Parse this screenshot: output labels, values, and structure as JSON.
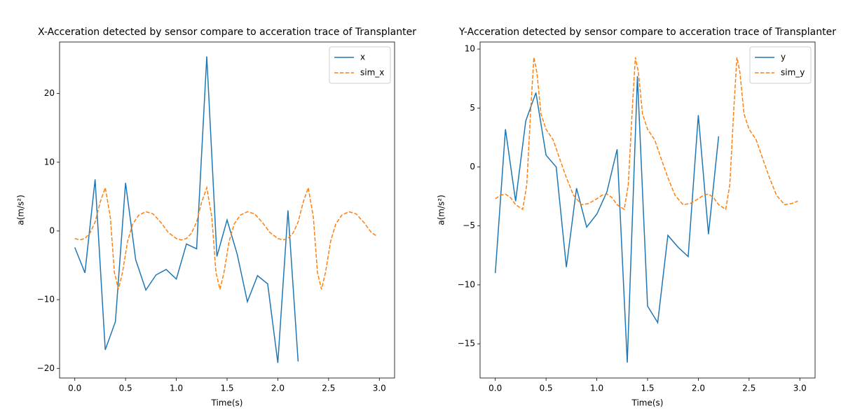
{
  "chart_data": [
    {
      "type": "line",
      "title": "X-Acceration detected by sensor compare to acceration trace of Transplanter",
      "xlabel": "Time(s)",
      "ylabel": "a(m/s²)",
      "xlim": [
        -0.15,
        3.15
      ],
      "ylim": [
        -21.4,
        27.5
      ],
      "xticks": [
        {
          "value": 0,
          "label": "0.0"
        },
        {
          "value": 0.5,
          "label": "0.5"
        },
        {
          "value": 1,
          "label": "1.0"
        },
        {
          "value": 1.5,
          "label": "1.5"
        },
        {
          "value": 2,
          "label": "2.0"
        },
        {
          "value": 2.5,
          "label": "2.5"
        },
        {
          "value": 3,
          "label": "3.0"
        }
      ],
      "yticks": [
        {
          "value": -20,
          "label": "−20"
        },
        {
          "value": -10,
          "label": "−10"
        },
        0,
        10,
        20
      ],
      "legend": "upper right",
      "series": [
        {
          "name": "x",
          "color": "#1f77b4",
          "dashed": false,
          "x": [
            0,
            0.1,
            0.2,
            0.3,
            0.4,
            0.5,
            0.6,
            0.7,
            0.8,
            0.9,
            1.0,
            1.1,
            1.2,
            1.3,
            1.4,
            1.5,
            1.6,
            1.7,
            1.8,
            1.9,
            2.0,
            2.1,
            2.2
          ],
          "values": [
            -2.4,
            -6.1,
            7.5,
            -17.3,
            -13.2,
            7.0,
            -4.2,
            -8.6,
            -6.4,
            -5.6,
            -7.0,
            -1.9,
            -2.6,
            25.4,
            -3.7,
            1.6,
            -3.4,
            -10.3,
            -6.5,
            -7.7,
            -19.2,
            3.0,
            -19.0
          ]
        },
        {
          "name": "sim_x",
          "color": "#ff7f0e",
          "dashed": true,
          "x": [
            0,
            0.05,
            0.1,
            0.15,
            0.2,
            0.25,
            0.3,
            0.35,
            0.39,
            0.43,
            0.47,
            0.52,
            0.57,
            0.63,
            0.7,
            0.77,
            0.85,
            0.92,
            1,
            1.05,
            1.1,
            1.15,
            1.2,
            1.25,
            1.3,
            1.35,
            1.39,
            1.43,
            1.47,
            1.52,
            1.57,
            1.63,
            1.7,
            1.77,
            1.85,
            1.92,
            2,
            2.05,
            2.1,
            2.15,
            2.2,
            2.25,
            2.3,
            2.35,
            2.39,
            2.43,
            2.47,
            2.52,
            2.57,
            2.63,
            2.7,
            2.77,
            2.85,
            2.92,
            2.98
          ],
          "values": [
            -1.1,
            -1.3,
            -1.1,
            -0.3,
            1.3,
            4.2,
            6.3,
            2.0,
            -6.0,
            -8.5,
            -6.0,
            -1.5,
            1.0,
            2.3,
            2.8,
            2.5,
            1.2,
            -0.2,
            -1.1,
            -1.3,
            -1.1,
            -0.3,
            1.3,
            4.2,
            6.3,
            2.0,
            -6.0,
            -8.5,
            -6.0,
            -1.5,
            1.0,
            2.3,
            2.8,
            2.5,
            1.2,
            -0.2,
            -1.1,
            -1.3,
            -1.1,
            -0.3,
            1.3,
            4.2,
            6.3,
            2.0,
            -6.0,
            -8.5,
            -6.0,
            -1.5,
            1.0,
            2.3,
            2.8,
            2.5,
            1.2,
            -0.2,
            -0.8
          ]
        }
      ]
    },
    {
      "type": "line",
      "title": "Y-Acceration detected by sensor compare to acceration trace of Transplanter",
      "xlabel": "Time(s)",
      "ylabel": "a(m/s²)",
      "xlim": [
        -0.15,
        3.15
      ],
      "ylim": [
        -17.9,
        10.6
      ],
      "xticks": [
        {
          "value": 0,
          "label": "0.0"
        },
        {
          "value": 0.5,
          "label": "0.5"
        },
        {
          "value": 1,
          "label": "1.0"
        },
        {
          "value": 1.5,
          "label": "1.5"
        },
        {
          "value": 2,
          "label": "2.0"
        },
        {
          "value": 2.5,
          "label": "2.5"
        },
        {
          "value": 3,
          "label": "3.0"
        }
      ],
      "yticks": [
        {
          "value": -15,
          "label": "−15"
        },
        {
          "value": -10,
          "label": "−10"
        },
        {
          "value": -5,
          "label": "−5"
        },
        0,
        5,
        10
      ],
      "legend": "upper right",
      "series": [
        {
          "name": "y",
          "color": "#1f77b4",
          "dashed": false,
          "x": [
            0,
            0.1,
            0.2,
            0.3,
            0.4,
            0.5,
            0.6,
            0.7,
            0.8,
            0.9,
            1.0,
            1.1,
            1.2,
            1.3,
            1.4,
            1.5,
            1.6,
            1.7,
            1.8,
            1.9,
            2.0,
            2.1,
            2.2
          ],
          "values": [
            -9.0,
            3.2,
            -2.9,
            3.9,
            6.3,
            1.0,
            0.0,
            -8.5,
            -1.8,
            -5.1,
            -4.0,
            -2.1,
            1.5,
            -16.6,
            7.7,
            -11.8,
            -13.2,
            -5.8,
            -6.8,
            -7.6,
            4.4,
            -5.7,
            2.6
          ]
        },
        {
          "name": "sim_y",
          "color": "#ff7f0e",
          "dashed": true,
          "x": [
            0,
            0.05,
            0.1,
            0.15,
            0.2,
            0.27,
            0.31,
            0.35,
            0.38,
            0.41,
            0.45,
            0.5,
            0.57,
            0.63,
            0.7,
            0.77,
            0.85,
            0.92,
            1,
            1.05,
            1.1,
            1.15,
            1.2,
            1.27,
            1.31,
            1.35,
            1.38,
            1.41,
            1.45,
            1.5,
            1.57,
            1.63,
            1.7,
            1.77,
            1.85,
            1.92,
            2,
            2.05,
            2.1,
            2.15,
            2.2,
            2.27,
            2.31,
            2.35,
            2.38,
            2.41,
            2.45,
            2.5,
            2.57,
            2.63,
            2.7,
            2.77,
            2.85,
            2.92,
            2.98
          ],
          "values": [
            -2.7,
            -2.4,
            -2.3,
            -2.6,
            -3.2,
            -3.6,
            -1.5,
            5.0,
            9.3,
            8.0,
            4.5,
            3.2,
            2.3,
            0.8,
            -0.9,
            -2.4,
            -3.2,
            -3.1,
            -2.7,
            -2.4,
            -2.3,
            -2.6,
            -3.2,
            -3.6,
            -1.5,
            5.0,
            9.3,
            8.0,
            4.5,
            3.2,
            2.3,
            0.8,
            -0.9,
            -2.4,
            -3.2,
            -3.1,
            -2.7,
            -2.4,
            -2.3,
            -2.6,
            -3.2,
            -3.6,
            -1.5,
            5.0,
            9.3,
            8.0,
            4.5,
            3.2,
            2.3,
            0.8,
            -0.9,
            -2.4,
            -3.2,
            -3.1,
            -2.9
          ]
        }
      ]
    }
  ]
}
